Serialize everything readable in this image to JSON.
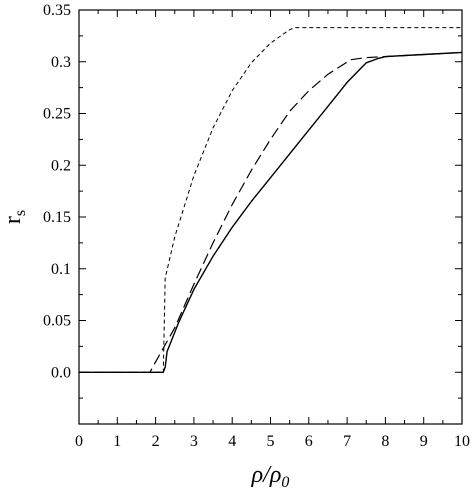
{
  "chart_data": {
    "type": "line",
    "xlabel": {
      "main": "ρ/ρ",
      "sub": "0"
    },
    "ylabel": {
      "main": "r",
      "sub": "s"
    },
    "xlim": [
      0,
      10
    ],
    "ylim": [
      -0.05,
      0.35
    ],
    "xticks": [
      "0",
      "1",
      "2",
      "3",
      "4",
      "5",
      "6",
      "7",
      "8",
      "9",
      "10"
    ],
    "yticks": [
      "0.0",
      "0.05",
      "0.1",
      "0.15",
      "0.2",
      "0.25",
      "0.3",
      "0.35"
    ],
    "ytick_values": [
      0.0,
      0.05,
      0.1,
      0.15,
      0.2,
      0.25,
      0.3,
      0.35
    ],
    "grid": false,
    "legend": "none",
    "series": [
      {
        "style": "solid",
        "x": [
          0,
          2.2,
          2.25,
          2.3,
          2.6,
          3.0,
          3.5,
          4.0,
          4.5,
          5.0,
          5.5,
          6.0,
          6.5,
          7.0,
          7.5,
          7.8,
          8.0,
          9.0,
          10.0
        ],
        "y": [
          0.0,
          0.0,
          0.005,
          0.02,
          0.048,
          0.08,
          0.112,
          0.14,
          0.165,
          0.188,
          0.211,
          0.234,
          0.257,
          0.28,
          0.299,
          0.303,
          0.305,
          0.307,
          0.309
        ]
      },
      {
        "style": "long-dash",
        "x": [
          0,
          1.85,
          2.0,
          2.5,
          3.0,
          3.5,
          4.0,
          4.5,
          5.0,
          5.5,
          6.0,
          6.5,
          7.1,
          7.5,
          8.0,
          9.0,
          10.0
        ],
        "y": [
          0.0,
          0.0,
          0.01,
          0.043,
          0.085,
          0.125,
          0.162,
          0.195,
          0.225,
          0.252,
          0.272,
          0.288,
          0.302,
          0.304,
          0.305,
          0.307,
          0.309
        ]
      },
      {
        "style": "short-dash",
        "x": [
          0,
          2.2,
          2.25,
          2.5,
          3.0,
          3.5,
          4.0,
          4.5,
          5.0,
          5.5,
          5.65,
          6.0,
          7.0,
          8.0,
          9.0,
          10.0
        ],
        "y": [
          0.0,
          0.0,
          0.091,
          0.131,
          0.19,
          0.236,
          0.272,
          0.299,
          0.318,
          0.331,
          0.333,
          0.333,
          0.333,
          0.333,
          0.333,
          0.333
        ]
      }
    ]
  }
}
